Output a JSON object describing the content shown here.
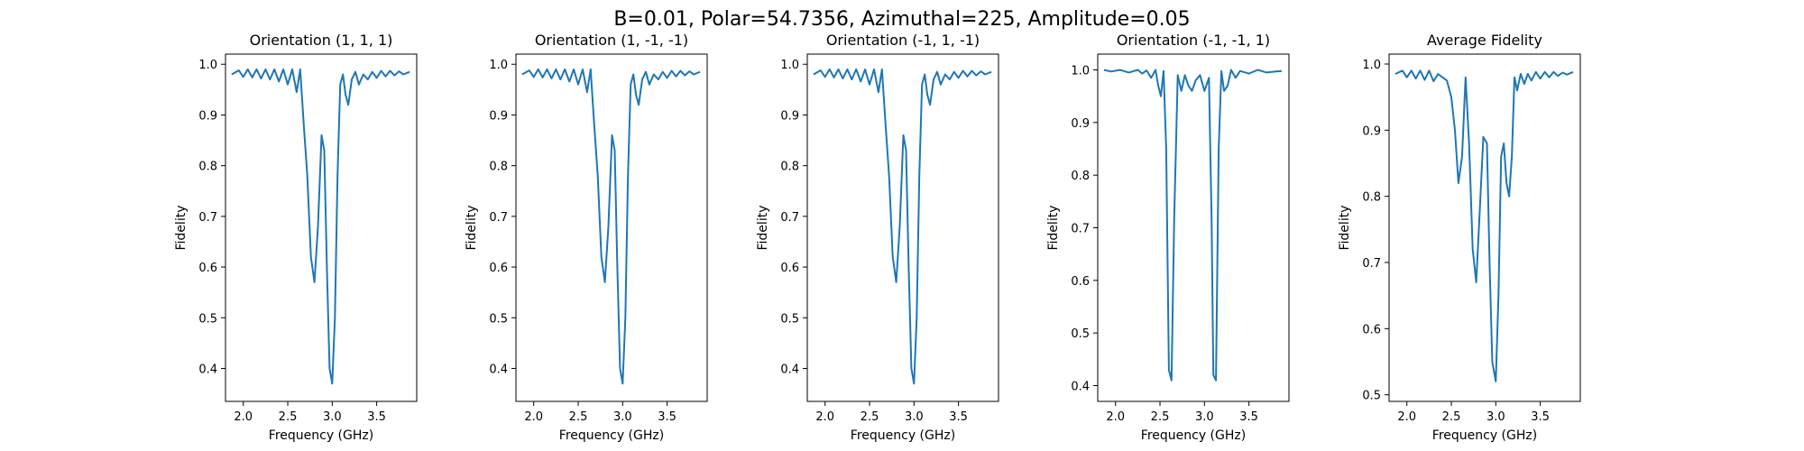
{
  "figure": {
    "suptitle": "B=0.01, Polar=54.7356, Azimuthal=225, Amplitude=0.05"
  },
  "chart_data": [
    {
      "type": "line",
      "title": "Orientation (1, 1, 1)",
      "xlabel": "Frequency (GHz)",
      "ylabel": "Fidelity",
      "xlim": [
        1.8,
        3.95
      ],
      "ylim": [
        0.335,
        1.02
      ],
      "xticks": [
        2.0,
        2.5,
        3.0,
        3.5
      ],
      "xtick_labels": [
        "2.0",
        "2.5",
        "3.0",
        "3.5"
      ],
      "yticks": [
        0.4,
        0.5,
        0.6,
        0.7,
        0.8,
        0.9,
        1.0
      ],
      "ytick_labels": [
        "0.4",
        "0.5",
        "0.6",
        "0.7",
        "0.8",
        "0.9",
        "1.0"
      ],
      "line_color": "#1f77b4",
      "series": [
        {
          "x": [
            1.87,
            1.95,
            2.0,
            2.05,
            2.1,
            2.15,
            2.2,
            2.25,
            2.3,
            2.35,
            2.4,
            2.45,
            2.5,
            2.55,
            2.6,
            2.64,
            2.68,
            2.72,
            2.76,
            2.8,
            2.84,
            2.88,
            2.91,
            2.94,
            2.97,
            3.0,
            3.03,
            3.06,
            3.09,
            3.12,
            3.15,
            3.18,
            3.22,
            3.26,
            3.3,
            3.35,
            3.4,
            3.45,
            3.5,
            3.55,
            3.6,
            3.65,
            3.7,
            3.75,
            3.8,
            3.87
          ],
          "y": [
            0.98,
            0.988,
            0.975,
            0.99,
            0.974,
            0.99,
            0.972,
            0.99,
            0.97,
            0.99,
            0.966,
            0.99,
            0.96,
            0.99,
            0.945,
            0.99,
            0.88,
            0.78,
            0.62,
            0.57,
            0.68,
            0.86,
            0.83,
            0.6,
            0.4,
            0.37,
            0.5,
            0.78,
            0.96,
            0.98,
            0.94,
            0.92,
            0.97,
            0.985,
            0.96,
            0.98,
            0.97,
            0.985,
            0.973,
            0.987,
            0.976,
            0.987,
            0.978,
            0.986,
            0.98,
            0.985
          ]
        }
      ]
    },
    {
      "type": "line",
      "title": "Orientation (1, -1, -1)",
      "xlabel": "Frequency (GHz)",
      "ylabel": "Fidelity",
      "xlim": [
        1.8,
        3.95
      ],
      "ylim": [
        0.335,
        1.02
      ],
      "xticks": [
        2.0,
        2.5,
        3.0,
        3.5
      ],
      "xtick_labels": [
        "2.0",
        "2.5",
        "3.0",
        "3.5"
      ],
      "yticks": [
        0.4,
        0.5,
        0.6,
        0.7,
        0.8,
        0.9,
        1.0
      ],
      "ytick_labels": [
        "0.4",
        "0.5",
        "0.6",
        "0.7",
        "0.8",
        "0.9",
        "1.0"
      ],
      "line_color": "#1f77b4",
      "series": [
        {
          "x": [
            1.87,
            1.95,
            2.0,
            2.05,
            2.1,
            2.15,
            2.2,
            2.25,
            2.3,
            2.35,
            2.4,
            2.45,
            2.5,
            2.55,
            2.6,
            2.64,
            2.68,
            2.72,
            2.76,
            2.8,
            2.84,
            2.88,
            2.91,
            2.94,
            2.97,
            3.0,
            3.03,
            3.06,
            3.09,
            3.12,
            3.15,
            3.18,
            3.22,
            3.26,
            3.3,
            3.35,
            3.4,
            3.45,
            3.5,
            3.55,
            3.6,
            3.65,
            3.7,
            3.75,
            3.8,
            3.87
          ],
          "y": [
            0.98,
            0.988,
            0.975,
            0.99,
            0.974,
            0.99,
            0.972,
            0.99,
            0.97,
            0.99,
            0.966,
            0.99,
            0.96,
            0.99,
            0.945,
            0.99,
            0.88,
            0.78,
            0.62,
            0.57,
            0.68,
            0.86,
            0.83,
            0.6,
            0.4,
            0.37,
            0.5,
            0.78,
            0.96,
            0.98,
            0.94,
            0.92,
            0.97,
            0.985,
            0.96,
            0.98,
            0.97,
            0.985,
            0.973,
            0.987,
            0.976,
            0.987,
            0.978,
            0.986,
            0.98,
            0.985
          ]
        }
      ]
    },
    {
      "type": "line",
      "title": "Orientation (-1, 1, -1)",
      "xlabel": "Frequency (GHz)",
      "ylabel": "Fidelity",
      "xlim": [
        1.8,
        3.95
      ],
      "ylim": [
        0.335,
        1.02
      ],
      "xticks": [
        2.0,
        2.5,
        3.0,
        3.5
      ],
      "xtick_labels": [
        "2.0",
        "2.5",
        "3.0",
        "3.5"
      ],
      "yticks": [
        0.4,
        0.5,
        0.6,
        0.7,
        0.8,
        0.9,
        1.0
      ],
      "ytick_labels": [
        "0.4",
        "0.5",
        "0.6",
        "0.7",
        "0.8",
        "0.9",
        "1.0"
      ],
      "line_color": "#1f77b4",
      "series": [
        {
          "x": [
            1.87,
            1.95,
            2.0,
            2.05,
            2.1,
            2.15,
            2.2,
            2.25,
            2.3,
            2.35,
            2.4,
            2.45,
            2.5,
            2.55,
            2.6,
            2.64,
            2.68,
            2.72,
            2.76,
            2.8,
            2.84,
            2.88,
            2.91,
            2.94,
            2.97,
            3.0,
            3.03,
            3.06,
            3.09,
            3.12,
            3.15,
            3.18,
            3.22,
            3.26,
            3.3,
            3.35,
            3.4,
            3.45,
            3.5,
            3.55,
            3.6,
            3.65,
            3.7,
            3.75,
            3.8,
            3.87
          ],
          "y": [
            0.98,
            0.988,
            0.975,
            0.99,
            0.974,
            0.99,
            0.972,
            0.99,
            0.97,
            0.99,
            0.966,
            0.99,
            0.96,
            0.99,
            0.945,
            0.99,
            0.88,
            0.78,
            0.62,
            0.57,
            0.68,
            0.86,
            0.83,
            0.6,
            0.4,
            0.37,
            0.5,
            0.78,
            0.96,
            0.98,
            0.94,
            0.92,
            0.97,
            0.985,
            0.96,
            0.98,
            0.97,
            0.985,
            0.973,
            0.987,
            0.976,
            0.987,
            0.978,
            0.986,
            0.98,
            0.985
          ]
        }
      ]
    },
    {
      "type": "line",
      "title": "Orientation (-1, -1, 1)",
      "xlabel": "Frequency (GHz)",
      "ylabel": "Fidelity",
      "xlim": [
        1.8,
        3.95
      ],
      "ylim": [
        0.37,
        1.03
      ],
      "xticks": [
        2.0,
        2.5,
        3.0,
        3.5
      ],
      "xtick_labels": [
        "2.0",
        "2.5",
        "3.0",
        "3.5"
      ],
      "yticks": [
        0.4,
        0.5,
        0.6,
        0.7,
        0.8,
        0.9,
        1.0
      ],
      "ytick_labels": [
        "0.4",
        "0.5",
        "0.6",
        "0.7",
        "0.8",
        "0.9",
        "1.0"
      ],
      "line_color": "#1f77b4",
      "series": [
        {
          "x": [
            1.87,
            1.95,
            2.05,
            2.15,
            2.25,
            2.3,
            2.35,
            2.4,
            2.45,
            2.48,
            2.51,
            2.54,
            2.57,
            2.6,
            2.63,
            2.66,
            2.7,
            2.74,
            2.78,
            2.82,
            2.86,
            2.9,
            2.95,
            3.0,
            3.05,
            3.08,
            3.1,
            3.13,
            3.16,
            3.19,
            3.22,
            3.26,
            3.3,
            3.35,
            3.4,
            3.5,
            3.6,
            3.7,
            3.8,
            3.87
          ],
          "y": [
            1.0,
            0.997,
            1.0,
            0.995,
            1.0,
            0.993,
            0.999,
            0.985,
            1.0,
            0.97,
            0.95,
            0.998,
            0.85,
            0.43,
            0.41,
            0.72,
            0.99,
            0.96,
            0.99,
            0.97,
            0.96,
            0.98,
            0.99,
            0.96,
            0.985,
            0.72,
            0.42,
            0.41,
            0.85,
            0.998,
            0.96,
            0.97,
            1.0,
            0.985,
            0.998,
            0.993,
            1.0,
            0.995,
            0.997,
            0.998
          ]
        }
      ]
    },
    {
      "type": "line",
      "title": "Average Fidelity",
      "xlabel": "Frequency (GHz)",
      "ylabel": "Fidelity",
      "xlim": [
        1.8,
        3.95
      ],
      "ylim": [
        0.49,
        1.015
      ],
      "xticks": [
        2.0,
        2.5,
        3.0,
        3.5
      ],
      "xtick_labels": [
        "2.0",
        "2.5",
        "3.0",
        "3.5"
      ],
      "yticks": [
        0.5,
        0.6,
        0.7,
        0.8,
        0.9,
        1.0
      ],
      "ytick_labels": [
        "0.5",
        "0.6",
        "0.7",
        "0.8",
        "0.9",
        "1.0"
      ],
      "line_color": "#1f77b4",
      "series": [
        {
          "x": [
            1.87,
            1.95,
            2.0,
            2.05,
            2.1,
            2.15,
            2.2,
            2.25,
            2.3,
            2.35,
            2.4,
            2.45,
            2.5,
            2.54,
            2.58,
            2.62,
            2.66,
            2.7,
            2.74,
            2.78,
            2.82,
            2.86,
            2.9,
            2.93,
            2.96,
            3.0,
            3.03,
            3.06,
            3.09,
            3.12,
            3.15,
            3.18,
            3.21,
            3.24,
            3.28,
            3.32,
            3.36,
            3.4,
            3.45,
            3.5,
            3.55,
            3.6,
            3.65,
            3.7,
            3.75,
            3.8,
            3.87
          ],
          "y": [
            0.985,
            0.99,
            0.98,
            0.99,
            0.978,
            0.99,
            0.976,
            0.99,
            0.974,
            0.985,
            0.98,
            0.975,
            0.95,
            0.9,
            0.82,
            0.86,
            0.98,
            0.88,
            0.72,
            0.67,
            0.78,
            0.89,
            0.88,
            0.7,
            0.55,
            0.52,
            0.65,
            0.86,
            0.88,
            0.82,
            0.8,
            0.86,
            0.98,
            0.96,
            0.985,
            0.97,
            0.985,
            0.975,
            0.988,
            0.978,
            0.988,
            0.98,
            0.988,
            0.982,
            0.987,
            0.984,
            0.988
          ]
        }
      ]
    }
  ]
}
